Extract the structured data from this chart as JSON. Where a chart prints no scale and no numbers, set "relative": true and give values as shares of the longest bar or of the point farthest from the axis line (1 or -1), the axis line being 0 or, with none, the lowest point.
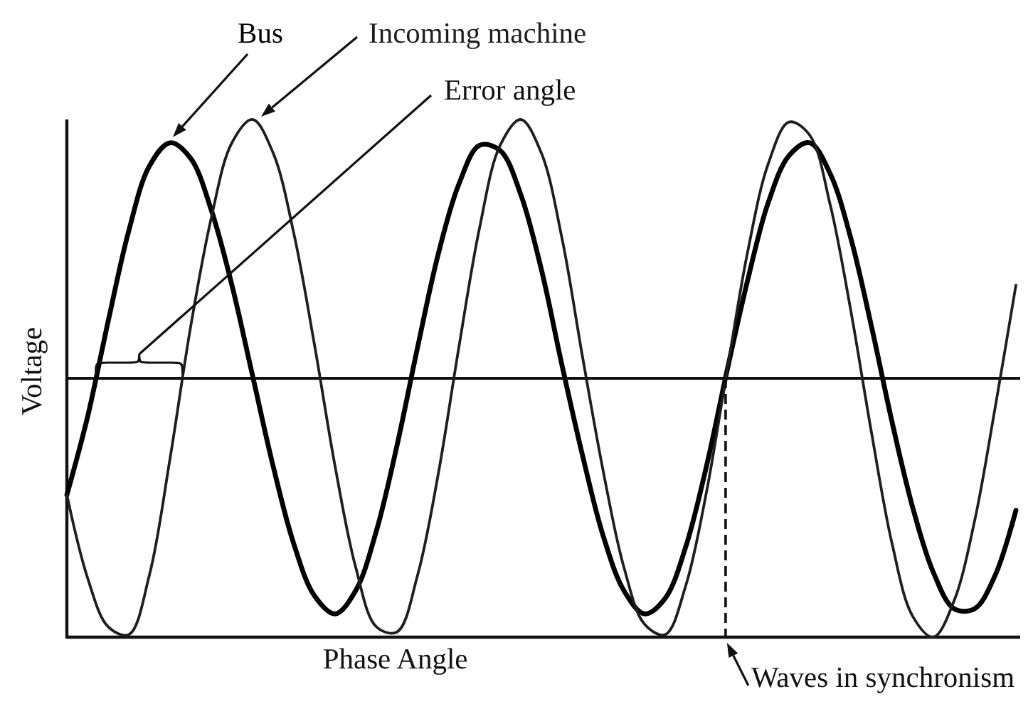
{
  "chart_data": {
    "type": "line",
    "relative": true,
    "xlabel": "Phase Angle",
    "ylabel": "Voltage",
    "categories": [
      null,
      null,
      null,
      null,
      null,
      null,
      null,
      null,
      null,
      null,
      null,
      null,
      null,
      null,
      null,
      null,
      null,
      null,
      null,
      null,
      null,
      null,
      null,
      null,
      null,
      null,
      null,
      null,
      null,
      null,
      null,
      null,
      null,
      null,
      null,
      null,
      null,
      null,
      null,
      null,
      null,
      null,
      null,
      null,
      null,
      null,
      null
    ],
    "series": [
      {
        "name": "Bus",
        "color": "#000000",
        "values": [
          -0.45,
          -0.15,
          0.22,
          0.57,
          0.82,
          0.91,
          0.85,
          0.65,
          0.36,
          0.01,
          -0.34,
          -0.64,
          -0.84,
          -0.91,
          -0.82,
          -0.59,
          -0.26,
          0.12,
          0.48,
          0.75,
          0.9,
          0.88,
          0.71,
          0.42,
          0.05,
          -0.3,
          -0.61,
          -0.82,
          -0.91,
          -0.85,
          -0.65,
          -0.34,
          0.03,
          0.38,
          0.68,
          0.86,
          0.91,
          0.79,
          0.54,
          0.2,
          -0.17,
          -0.5,
          -0.75,
          -0.89,
          -0.89,
          -0.76,
          -0.51
        ]
      },
      {
        "name": "Incoming machine",
        "color": "#1e1e1e",
        "values": [
          -0.45,
          -0.77,
          -0.96,
          -0.99,
          -0.76,
          -0.31,
          0.2,
          0.62,
          0.91,
          1.0,
          0.87,
          0.56,
          0.13,
          -0.34,
          -0.73,
          -0.96,
          -0.98,
          -0.76,
          -0.37,
          0.12,
          0.58,
          0.9,
          1.0,
          0.87,
          0.54,
          0.08,
          -0.36,
          -0.73,
          -0.95,
          -0.99,
          -0.8,
          -0.44,
          0.03,
          0.49,
          0.83,
          0.99,
          0.94,
          0.67,
          0.26,
          -0.21,
          -0.64,
          -0.92,
          -1.0,
          -0.86,
          -0.55,
          -0.11,
          0.36
        ]
      }
    ],
    "annotations": [
      "Error angle",
      "Waves in synchronism"
    ]
  }
}
